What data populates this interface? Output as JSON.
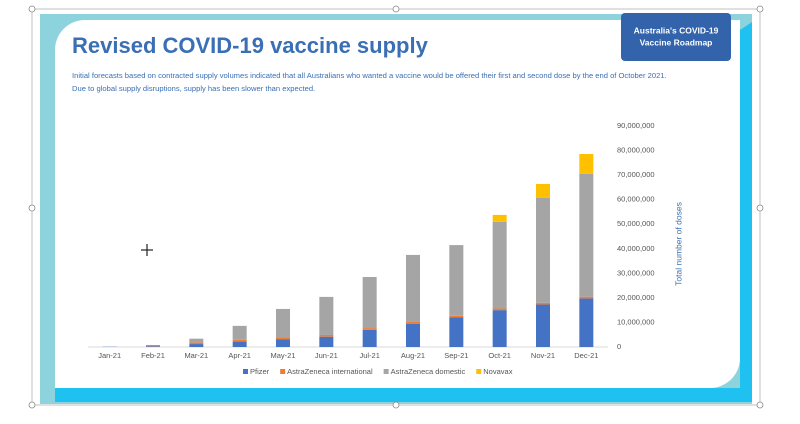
{
  "badge": [
    "Australia's COVID-19",
    "Vaccine Roadmap"
  ],
  "chart_data": {
    "type": "stacked_bar",
    "title": "Revised COVID-19 vaccine supply",
    "subtitle": [
      "Initial forecasts based on contracted supply volumes indicated that all Australians who wanted a vaccine would be offered their first and second dose by the end of October 2021.",
      "Due to global supply disruptions, supply has been slower than expected."
    ],
    "y_label": "Total number of doses",
    "categories": [
      "Jan-21",
      "Feb-21",
      "Mar-21",
      "Apr-21",
      "May-21",
      "Jun-21",
      "Jul-21",
      "Aug-21",
      "Sep-21",
      "Oct-21",
      "Nov-21",
      "Dec-21"
    ],
    "series": [
      {
        "name": "Pfizer",
        "color": "#4472c4",
        "values": [
          100000,
          300000,
          1200000,
          2200000,
          3200000,
          4200000,
          7000000,
          9500000,
          12000000,
          15000000,
          17300000,
          19800000
        ]
      },
      {
        "name": "AstraZeneca international",
        "color": "#ed7d31",
        "values": [
          0,
          500000,
          700000,
          700000,
          700000,
          700000,
          700000,
          700000,
          700000,
          700000,
          700000,
          700000
        ]
      },
      {
        "name": "AstraZeneca domestic",
        "color": "#a5a5a5",
        "values": [
          0,
          0,
          1500000,
          5700000,
          11600000,
          15500000,
          20800000,
          27300000,
          28800000,
          35300000,
          42700000,
          50000000
        ]
      },
      {
        "name": "Novavax",
        "color": "#ffc000",
        "values": [
          0,
          0,
          0,
          0,
          0,
          0,
          0,
          0,
          0,
          2800000,
          5700000,
          8100000
        ]
      }
    ],
    "ylim": [
      0,
      90000000
    ],
    "yticks": [
      0,
      {
        "value": 10000000,
        "label": "10,000,000"
      },
      {
        "value": 20000000,
        "label": "20,000,000"
      },
      {
        "value": 30000000,
        "label": "30,000,000"
      },
      {
        "value": 40000000,
        "label": "40,000,000"
      },
      {
        "value": 50000000,
        "label": "50,000,000"
      },
      {
        "value": 60000000,
        "label": "60,000,000"
      },
      {
        "value": 70000000,
        "label": "70,000,000"
      },
      {
        "value": 80000000,
        "label": "80,000,000"
      },
      {
        "value": 90000000,
        "label": "90,000,000"
      }
    ],
    "grid": false,
    "legend": "bottom"
  }
}
